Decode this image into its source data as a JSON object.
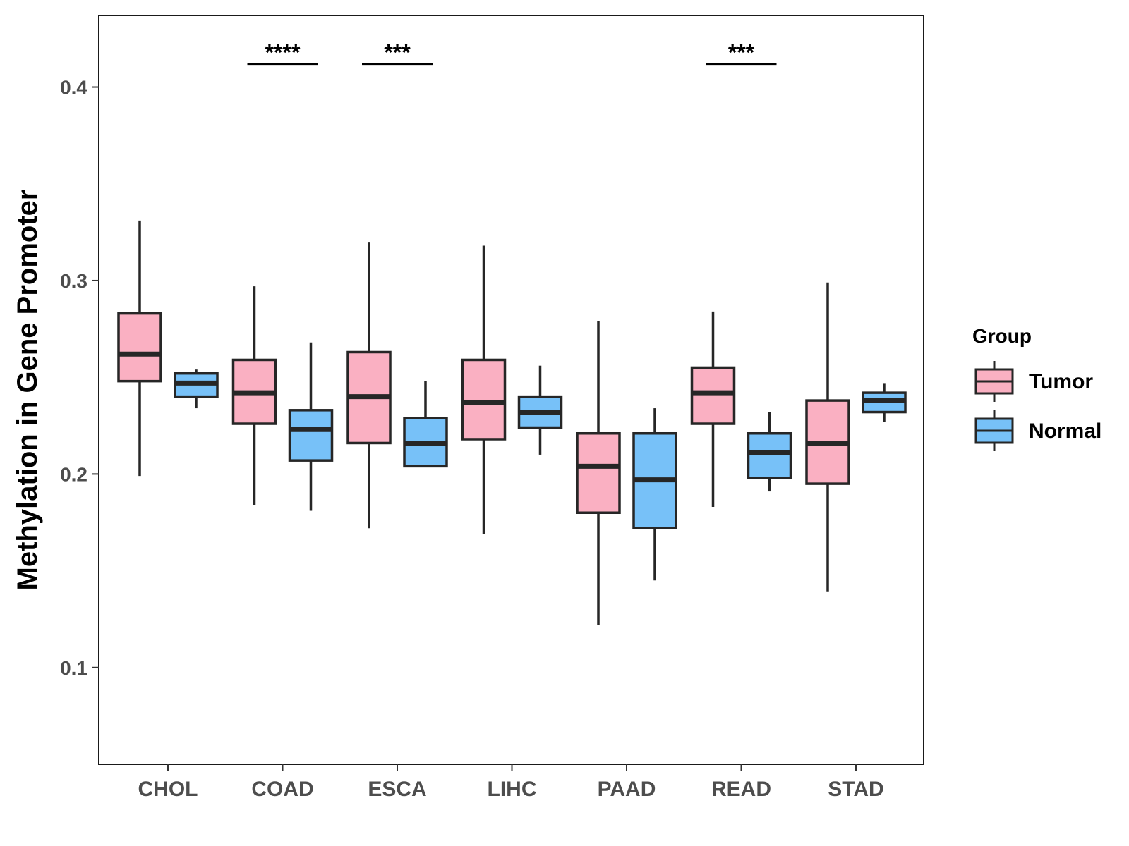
{
  "chart_data": {
    "type": "boxplot",
    "title": "",
    "xlabel": "",
    "ylabel": "Methylation in Gene Promoter",
    "ylim": [
      0.05,
      0.437
    ],
    "yticks": [
      0.1,
      0.2,
      0.3,
      0.4
    ],
    "ytick_labels": [
      "0.1",
      "0.2",
      "0.3",
      "0.4"
    ],
    "categories": [
      "CHOL",
      "COAD",
      "ESCA",
      "LIHC",
      "PAAD",
      "READ",
      "STAD"
    ],
    "legend": {
      "title": "Group",
      "position": "right",
      "items": [
        {
          "name": "Tumor",
          "color": "#FAB0C2"
        },
        {
          "name": "Normal",
          "color": "#77C1F8"
        }
      ]
    },
    "series": [
      {
        "name": "Tumor",
        "color": "#FAB0C2",
        "boxes": [
          {
            "category": "CHOL",
            "min": 0.199,
            "q1": 0.248,
            "median": 0.262,
            "q3": 0.283,
            "max": 0.331
          },
          {
            "category": "COAD",
            "min": 0.184,
            "q1": 0.226,
            "median": 0.242,
            "q3": 0.259,
            "max": 0.297
          },
          {
            "category": "ESCA",
            "min": 0.172,
            "q1": 0.216,
            "median": 0.24,
            "q3": 0.263,
            "max": 0.32
          },
          {
            "category": "LIHC",
            "min": 0.169,
            "q1": 0.218,
            "median": 0.237,
            "q3": 0.259,
            "max": 0.318
          },
          {
            "category": "PAAD",
            "min": 0.122,
            "q1": 0.18,
            "median": 0.204,
            "q3": 0.221,
            "max": 0.279
          },
          {
            "category": "READ",
            "min": 0.183,
            "q1": 0.226,
            "median": 0.242,
            "q3": 0.255,
            "max": 0.284
          },
          {
            "category": "STAD",
            "min": 0.139,
            "q1": 0.195,
            "median": 0.216,
            "q3": 0.238,
            "max": 0.299
          }
        ]
      },
      {
        "name": "Normal",
        "color": "#77C1F8",
        "boxes": [
          {
            "category": "CHOL",
            "min": 0.234,
            "q1": 0.24,
            "median": 0.247,
            "q3": 0.252,
            "max": 0.254
          },
          {
            "category": "COAD",
            "min": 0.181,
            "q1": 0.207,
            "median": 0.223,
            "q3": 0.233,
            "max": 0.268
          },
          {
            "category": "ESCA",
            "min": 0.204,
            "q1": 0.204,
            "median": 0.216,
            "q3": 0.229,
            "max": 0.248
          },
          {
            "category": "LIHC",
            "min": 0.21,
            "q1": 0.224,
            "median": 0.232,
            "q3": 0.24,
            "max": 0.256
          },
          {
            "category": "PAAD",
            "min": 0.145,
            "q1": 0.172,
            "median": 0.197,
            "q3": 0.221,
            "max": 0.234
          },
          {
            "category": "READ",
            "min": 0.191,
            "q1": 0.198,
            "median": 0.211,
            "q3": 0.221,
            "max": 0.232
          },
          {
            "category": "STAD",
            "min": 0.227,
            "q1": 0.232,
            "median": 0.238,
            "q3": 0.242,
            "max": 0.247
          }
        ]
      }
    ],
    "annotations": [
      {
        "category": "COAD",
        "label": "****",
        "y": 0.412
      },
      {
        "category": "ESCA",
        "label": "***",
        "y": 0.412
      },
      {
        "category": "READ",
        "label": "***",
        "y": 0.412
      }
    ]
  }
}
